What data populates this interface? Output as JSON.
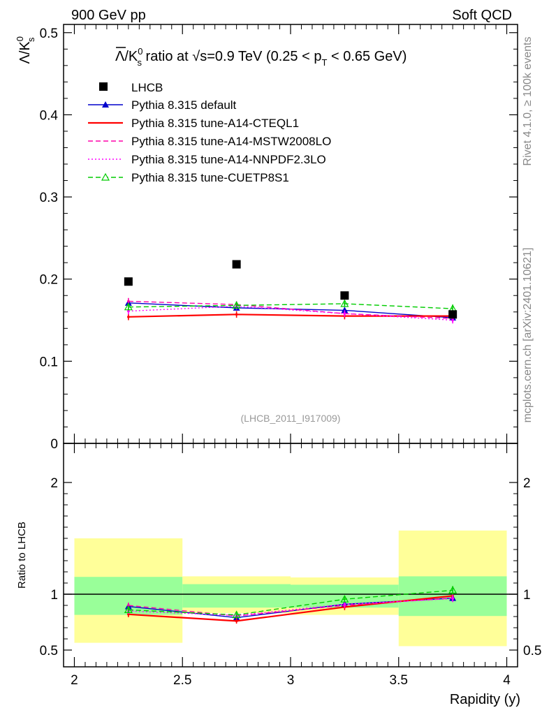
{
  "header": {
    "left": "900 GeV pp",
    "right": "Soft QCD"
  },
  "side_labels": {
    "rivet": "Rivet 4.1.0, ≥ 100k events",
    "mcplots": "mcplots.cern.ch [arXiv:2401.10621]"
  },
  "chart_data": {
    "type": "scatter",
    "title": "Λ̅/K⁰s ratio at √s=0.9 TeV (0.25 < pT < 0.65 GeV)",
    "title_parts": {
      "ratio": "Λ/K",
      "sup": "0",
      "sub": "s",
      "mid": " ratio at ",
      "sqrt": "√",
      "energy": "s=0.9 TeV (0.25 < p",
      "pt_sub": "T",
      "tail": " < 0.65 GeV)"
    },
    "ylabel_main": {
      "base": "Λ/K",
      "sup": "0",
      "sub": "s"
    },
    "ylabel_ratio": "Ratio to LHCB",
    "xlabel": "Rapidity (y)",
    "analysis_id": "(LHCB_2011_I917009)",
    "x": [
      2.25,
      2.75,
      3.25,
      3.75
    ],
    "x_bins": [
      [
        2.0,
        2.5
      ],
      [
        2.5,
        3.0
      ],
      [
        3.0,
        3.5
      ],
      [
        3.5,
        4.0
      ]
    ],
    "xlim": [
      1.95,
      4.05
    ],
    "ylim_main": [
      0.0,
      0.51
    ],
    "ylim_ratio": [
      0.35,
      2.35
    ],
    "x_ticks": [
      2,
      2.5,
      3,
      3.5,
      4
    ],
    "x_tick_labels": [
      "2",
      "2.5",
      "3",
      "3.5",
      "4"
    ],
    "y_ticks_main": [
      0,
      0.1,
      0.2,
      0.3,
      0.4,
      0.5
    ],
    "y_tick_labels_main": [
      "0",
      "0.1",
      "0.2",
      "0.3",
      "0.4",
      "0.5"
    ],
    "y_ticks_ratio": [
      0.5,
      1,
      2
    ],
    "y_tick_labels_ratio": [
      "0.5",
      "1",
      "2"
    ],
    "data": {
      "name": "LHCB",
      "values": [
        0.197,
        0.218,
        0.18,
        0.157
      ],
      "band_green": [
        [
          0.815,
          1.155
        ],
        [
          0.88,
          1.09
        ],
        [
          0.88,
          1.085
        ],
        [
          0.805,
          1.16
        ]
      ],
      "band_yellow": [
        [
          0.565,
          1.5
        ],
        [
          0.83,
          1.16
        ],
        [
          0.815,
          1.15
        ],
        [
          0.535,
          1.57
        ]
      ]
    },
    "series": [
      {
        "name": "Pythia 8.315 default",
        "color": "#0000cc",
        "style": "solid",
        "marker": "triangle-filled",
        "values": [
          0.171,
          0.165,
          0.162,
          0.153
        ],
        "errors": [
          0.003,
          0.003,
          0.003,
          0.003
        ],
        "ratio": [
          0.89,
          0.79,
          0.91,
          0.965
        ]
      },
      {
        "name": "Pythia 8.315 tune-A14-CTEQL1",
        "color": "#ff0000",
        "style": "solid",
        "marker": "none",
        "values": [
          0.154,
          0.157,
          0.155,
          0.155
        ],
        "errors": [
          0.004,
          0.004,
          0.004,
          0.004
        ],
        "ratio": [
          0.82,
          0.76,
          0.885,
          0.985
        ]
      },
      {
        "name": "Pythia 8.315 tune-A14-MSTW2008LO",
        "color": "#ff00aa",
        "style": "dashed",
        "marker": "none",
        "values": [
          0.173,
          0.169,
          0.158,
          0.152
        ],
        "errors": [
          0.004,
          0.004,
          0.004,
          0.004
        ],
        "ratio": [
          0.9,
          0.805,
          0.9,
          0.965
        ]
      },
      {
        "name": "Pythia 8.315 tune-A14-NNPDF2.3LO",
        "color": "#ff00ff",
        "style": "dotted",
        "marker": "none",
        "values": [
          0.161,
          0.167,
          0.158,
          0.15
        ],
        "errors": [
          0.004,
          0.004,
          0.004,
          0.004
        ],
        "ratio": [
          0.85,
          0.81,
          0.91,
          0.96
        ]
      },
      {
        "name": "Pythia 8.315 tune-CUETP8S1",
        "color": "#00cc00",
        "style": "dashed",
        "marker": "triangle-open",
        "values": [
          0.166,
          0.168,
          0.17,
          0.164
        ],
        "errors": [
          0.004,
          0.004,
          0.004,
          0.005
        ],
        "ratio": [
          0.86,
          0.815,
          0.955,
          1.035
        ]
      }
    ]
  }
}
